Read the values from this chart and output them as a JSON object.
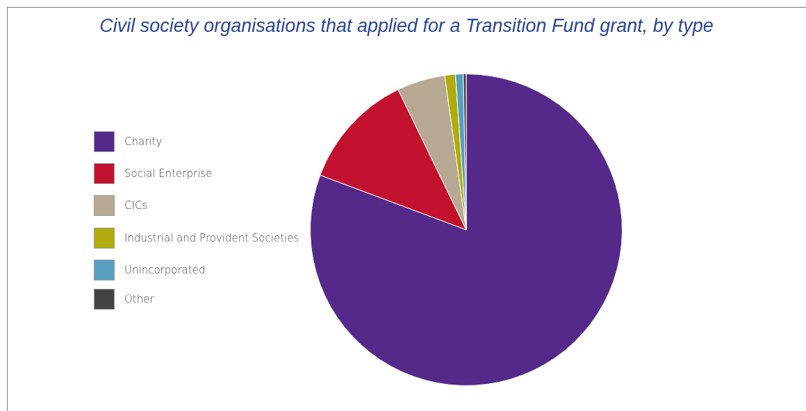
{
  "chart_data": {
    "type": "pie",
    "title": "Civil society organisations that applied for a Transition Fund grant, by type",
    "categories": [
      "Charity",
      "Social Enterprise",
      "CICs",
      "Industrial and Provident Societies",
      "Unincorporated",
      "Other"
    ],
    "values": [
      80.7,
      12.1,
      5.0,
      1.1,
      0.8,
      0.3
    ],
    "colors": [
      "#55298a",
      "#c1112e",
      "#b7a993",
      "#b1ab0c",
      "#55a0c0",
      "#444444"
    ],
    "legend": "left"
  }
}
